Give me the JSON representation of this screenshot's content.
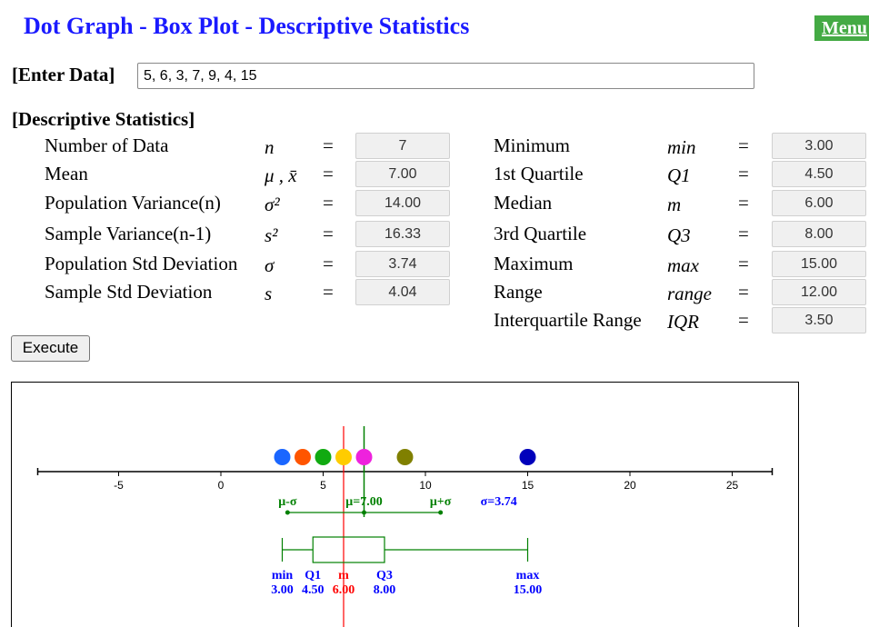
{
  "header": {
    "title": "Dot Graph - Box Plot - Descriptive Statistics",
    "menu_label": "Menu",
    "accent_color": "#1a1aff",
    "menu_color": "#44aa44"
  },
  "input": {
    "label": "[Enter Data]",
    "value": "5, 6, 3, 7, 9, 4, 15"
  },
  "stats": {
    "section_label": "[Descriptive Statistics]",
    "left": [
      {
        "label": "Number of Data",
        "symbol": "n",
        "eq": "=",
        "value": "7"
      },
      {
        "label": "Mean",
        "symbol": "μ , x̄",
        "eq": "=",
        "value": "7.00"
      },
      {
        "label": "Population Variance(n)",
        "symbol": "σ²",
        "eq": "=",
        "value": "14.00"
      },
      {
        "label": "Sample Variance(n-1)",
        "symbol": "s²",
        "eq": "=",
        "value": "16.33"
      },
      {
        "label": "Population Std Deviation",
        "symbol": "σ",
        "eq": "=",
        "value": "3.74"
      },
      {
        "label": "Sample Std Deviation",
        "symbol": "s",
        "eq": "=",
        "value": "4.04"
      }
    ],
    "right": [
      {
        "label": "Minimum",
        "symbol": "min",
        "eq": "=",
        "value": "3.00"
      },
      {
        "label": "1st Quartile",
        "symbol": "Q1",
        "eq": "=",
        "value": "4.50"
      },
      {
        "label": "Median",
        "symbol": "m",
        "eq": "=",
        "value": "6.00"
      },
      {
        "label": "3rd Quartile",
        "symbol": "Q3",
        "eq": "=",
        "value": "8.00"
      },
      {
        "label": "Maximum",
        "symbol": "max",
        "eq": "=",
        "value": "15.00"
      },
      {
        "label": "Range",
        "symbol": "range",
        "eq": "=",
        "value": "12.00"
      },
      {
        "label": "Interquartile Range",
        "symbol": "IQR",
        "eq": "=",
        "value": "3.50"
      }
    ]
  },
  "execute_label": "Execute",
  "chart_data": {
    "type": "scatter",
    "xlim": [
      -9,
      27
    ],
    "ticks": [
      -5,
      0,
      5,
      10,
      15,
      20,
      25
    ],
    "points": [
      {
        "x": 3,
        "color": "#1a66ff"
      },
      {
        "x": 4,
        "color": "#ff5500"
      },
      {
        "x": 5,
        "color": "#11aa11"
      },
      {
        "x": 6,
        "color": "#ffcc00"
      },
      {
        "x": 7,
        "color": "#ee22dd"
      },
      {
        "x": 9,
        "color": "#808000"
      },
      {
        "x": 15,
        "color": "#0000bb"
      }
    ],
    "mean": 7.0,
    "std": 3.74,
    "median": 6.0,
    "min": 3.0,
    "q1": 4.5,
    "q3": 8.0,
    "max": 15.0,
    "labels": {
      "mu_minus_sigma": "μ-σ",
      "mu": "μ=7.00",
      "mu_plus_sigma": "μ+σ",
      "sigma": "σ=3.74",
      "min": "min",
      "q1": "Q1",
      "m": "m",
      "q3": "Q3",
      "max": "max",
      "min_val": "3.00",
      "q1_val": "4.50",
      "m_val": "6.00",
      "q3_val": "8.00",
      "max_val": "15.00"
    },
    "colors": {
      "mean": "#008000",
      "median": "#ff0000",
      "box": "#008000",
      "blue_text": "#0000ff"
    }
  }
}
